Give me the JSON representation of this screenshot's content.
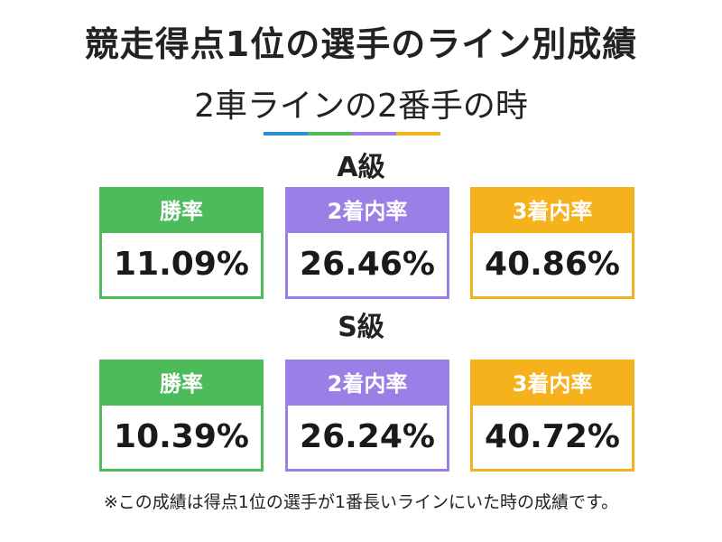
{
  "header": {
    "title": "競走得点1位の選手のライン別成績",
    "subtitle": "2車ラインの2番手の時"
  },
  "divider_colors": [
    "#2b8fd1",
    "#4cbb5a",
    "#9b7fe6",
    "#f5b21c"
  ],
  "sections": [
    {
      "label": "A級",
      "cards": [
        {
          "header": "勝率",
          "value": "11.09%",
          "color": "#4cbb5a"
        },
        {
          "header": "2着内率",
          "value": "26.46%",
          "color": "#9b7fe6"
        },
        {
          "header": "3着内率",
          "value": "40.86%",
          "color": "#f5b21c"
        }
      ]
    },
    {
      "label": "S級",
      "cards": [
        {
          "header": "勝率",
          "value": "10.39%",
          "color": "#4cbb5a"
        },
        {
          "header": "2着内率",
          "value": "26.24%",
          "color": "#9b7fe6"
        },
        {
          "header": "3着内率",
          "value": "40.72%",
          "color": "#f5b21c"
        }
      ]
    }
  ],
  "footnote": "※この成績は得点1位の選手が1番長いラインにいた時の成績です。"
}
